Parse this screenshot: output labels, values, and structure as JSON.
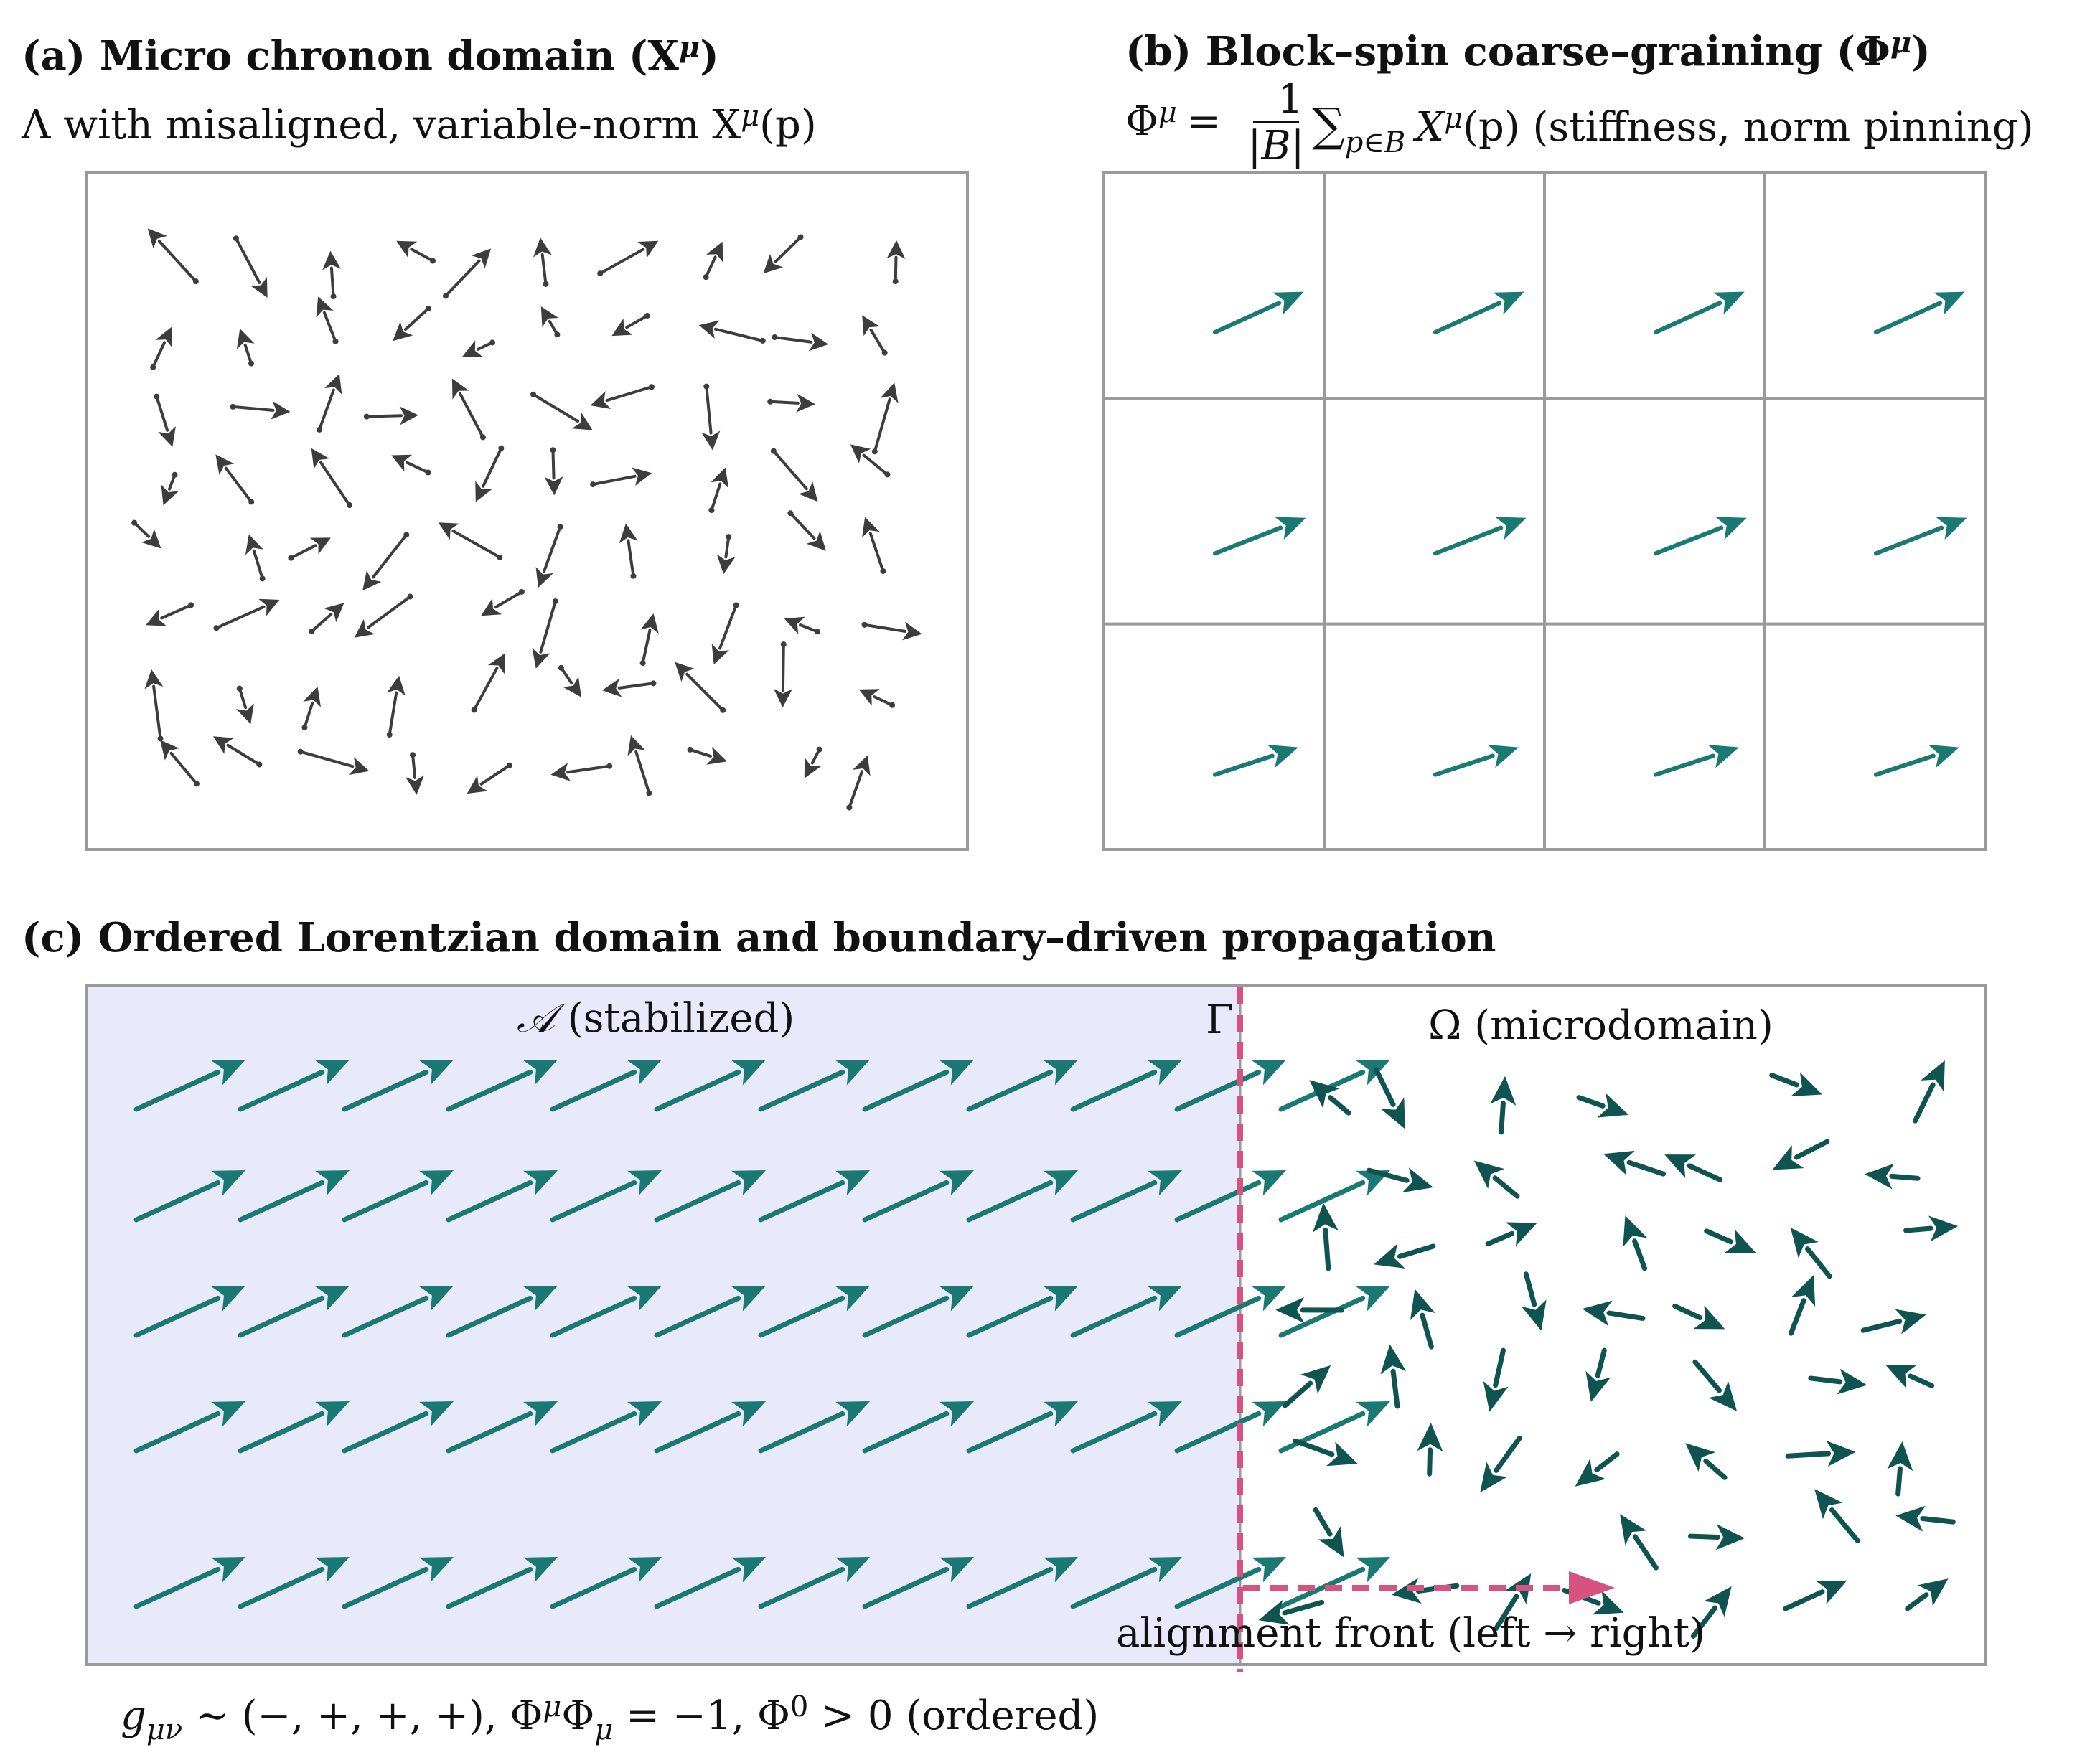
{
  "panel_a": {
    "title": "(a) Micro chronon domain (X",
    "title_sup": "μ",
    "title_tail": ")",
    "subtitle": "Λ with misaligned, variable-norm X",
    "subtitle_sup": "μ",
    "subtitle_tail": "(p)",
    "arrow_color": "#3d3d3d"
  },
  "panel_b": {
    "title": "(b) Block–spin coarse–graining (Φ",
    "title_sup": "μ",
    "title_tail": ")",
    "formula_lhs": "Φ",
    "formula_sup": "μ",
    "formula_eq": "=",
    "frac_num": "1",
    "frac_den": "|B|",
    "formula_sum": "∑",
    "formula_sub": "p∈B",
    "formula_x": "X",
    "formula_x_sup": "μ",
    "formula_tail": "(p) (stiffness, norm pinning)",
    "rows": 3,
    "cols": 4,
    "arrow_color": "#1a7a73"
  },
  "panel_c": {
    "title": "(c) Ordered Lorentzian domain and boundary–driven propagation",
    "region_a_symbol": "𝒜",
    "region_a_label": " (stabilized)",
    "boundary_label": "Γ",
    "region_omega_label": "Ω (microdomain)",
    "front_label": "alignment front (left → right)",
    "region_a_fill": "#e8eafc",
    "boundary_color": "#d6527f",
    "aligned_color": "#1a7a73",
    "micro_color": "#0f5450",
    "label_a_color": "#1a237e",
    "label_omega_color": "#6a6a6a"
  },
  "footer": {
    "g": "g",
    "g_sub": "μν",
    "sig": " ∼ (−, +, +, +), Φ",
    "sig_sup": "μ",
    "phi2": "Φ",
    "phi2_sub": "μ",
    "eq": " = −1, Φ",
    "zero_sup": "0",
    "tail": " > 0 (ordered)"
  }
}
